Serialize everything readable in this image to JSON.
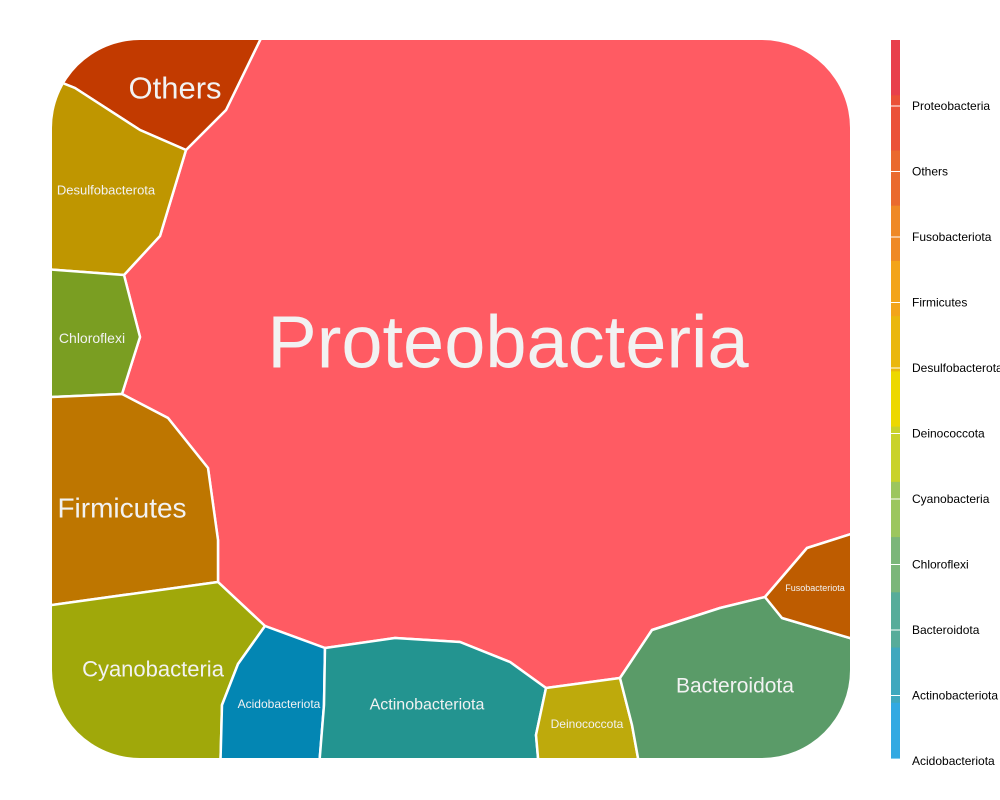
{
  "chart_data": {
    "type": "voronoi-treemap",
    "categories": [
      "Proteobacteria",
      "Others",
      "Desulfobacterota",
      "Chloroflexi",
      "Firmicutes",
      "Cyanobacteria",
      "Acidobacteriota",
      "Actinobacteriota",
      "Deinococcota",
      "Bacteroidota",
      "Fusobacteriota"
    ],
    "cells": [
      {
        "name": "Proteobacteria",
        "color": "#FF5B63"
      },
      {
        "name": "Others",
        "color": "#C23A00"
      },
      {
        "name": "Desulfobacterota",
        "color": "#BF9600"
      },
      {
        "name": "Chloroflexi",
        "color": "#7A9E22"
      },
      {
        "name": "Firmicutes",
        "color": "#BE7600"
      },
      {
        "name": "Cyanobacteria",
        "color": "#A0A80A"
      },
      {
        "name": "Acidobacteriota",
        "color": "#0386B3"
      },
      {
        "name": "Actinobacteriota",
        "color": "#239490"
      },
      {
        "name": "Deinococcota",
        "color": "#BEAA0C"
      },
      {
        "name": "Bacteroidota",
        "color": "#5A9B68"
      },
      {
        "name": "Fusobacteriota",
        "color": "#BE5C00"
      }
    ],
    "legend": {
      "position": "right",
      "labels": [
        "Proteobacteria",
        "Others",
        "Fusobacteriota",
        "Firmicutes",
        "Desulfobacterota",
        "Deinococcota",
        "Cyanobacteria",
        "Chloroflexi",
        "Bacteroidota",
        "Actinobacteriota",
        "Acidobacteriota"
      ],
      "colors": [
        "#E8404C",
        "#EB5138",
        "#EA6A2E",
        "#EF8925",
        "#F3A41A",
        "#EAB70E",
        "#EDD800",
        "#C9D22A",
        "#9CC65E",
        "#7BB67A",
        "#57AC9A",
        "#40A8BE",
        "#33A9E2"
      ]
    }
  }
}
